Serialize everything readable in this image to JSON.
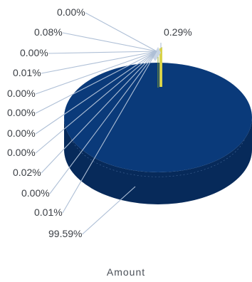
{
  "chart_data": {
    "type": "pie",
    "title": "",
    "xlabel": "Amount",
    "three_d": true,
    "slices": [
      {
        "label": "0.00%",
        "value": 0.0,
        "color": "#8fb3e0"
      },
      {
        "label": "0.08%",
        "value": 0.08,
        "color": "#b7c8de"
      },
      {
        "label": "0.00%",
        "value": 0.0,
        "color": "#8fb3e0"
      },
      {
        "label": "0.01%",
        "value": 0.01,
        "color": "#b7c8de"
      },
      {
        "label": "0.00%",
        "value": 0.0,
        "color": "#8fb3e0"
      },
      {
        "label": "0.00%",
        "value": 0.0,
        "color": "#8fb3e0"
      },
      {
        "label": "0.00%",
        "value": 0.0,
        "color": "#8fb3e0"
      },
      {
        "label": "0.00%",
        "value": 0.0,
        "color": "#8fb3e0"
      },
      {
        "label": "0.02%",
        "value": 0.02,
        "color": "#b7c8de"
      },
      {
        "label": "0.00%",
        "value": 0.0,
        "color": "#8fb3e0"
      },
      {
        "label": "0.01%",
        "value": 0.01,
        "color": "#b7c8de"
      },
      {
        "label": "99.59%",
        "value": 99.59,
        "color": "#0a3a7a"
      },
      {
        "label": "0.29%",
        "value": 0.29,
        "color": "#d8d24a"
      }
    ],
    "colors": {
      "main_top": "#0a3a7a",
      "main_side": "#072a5a",
      "leader_line": "#aebfd6",
      "label_text": "#3b3f45"
    }
  }
}
